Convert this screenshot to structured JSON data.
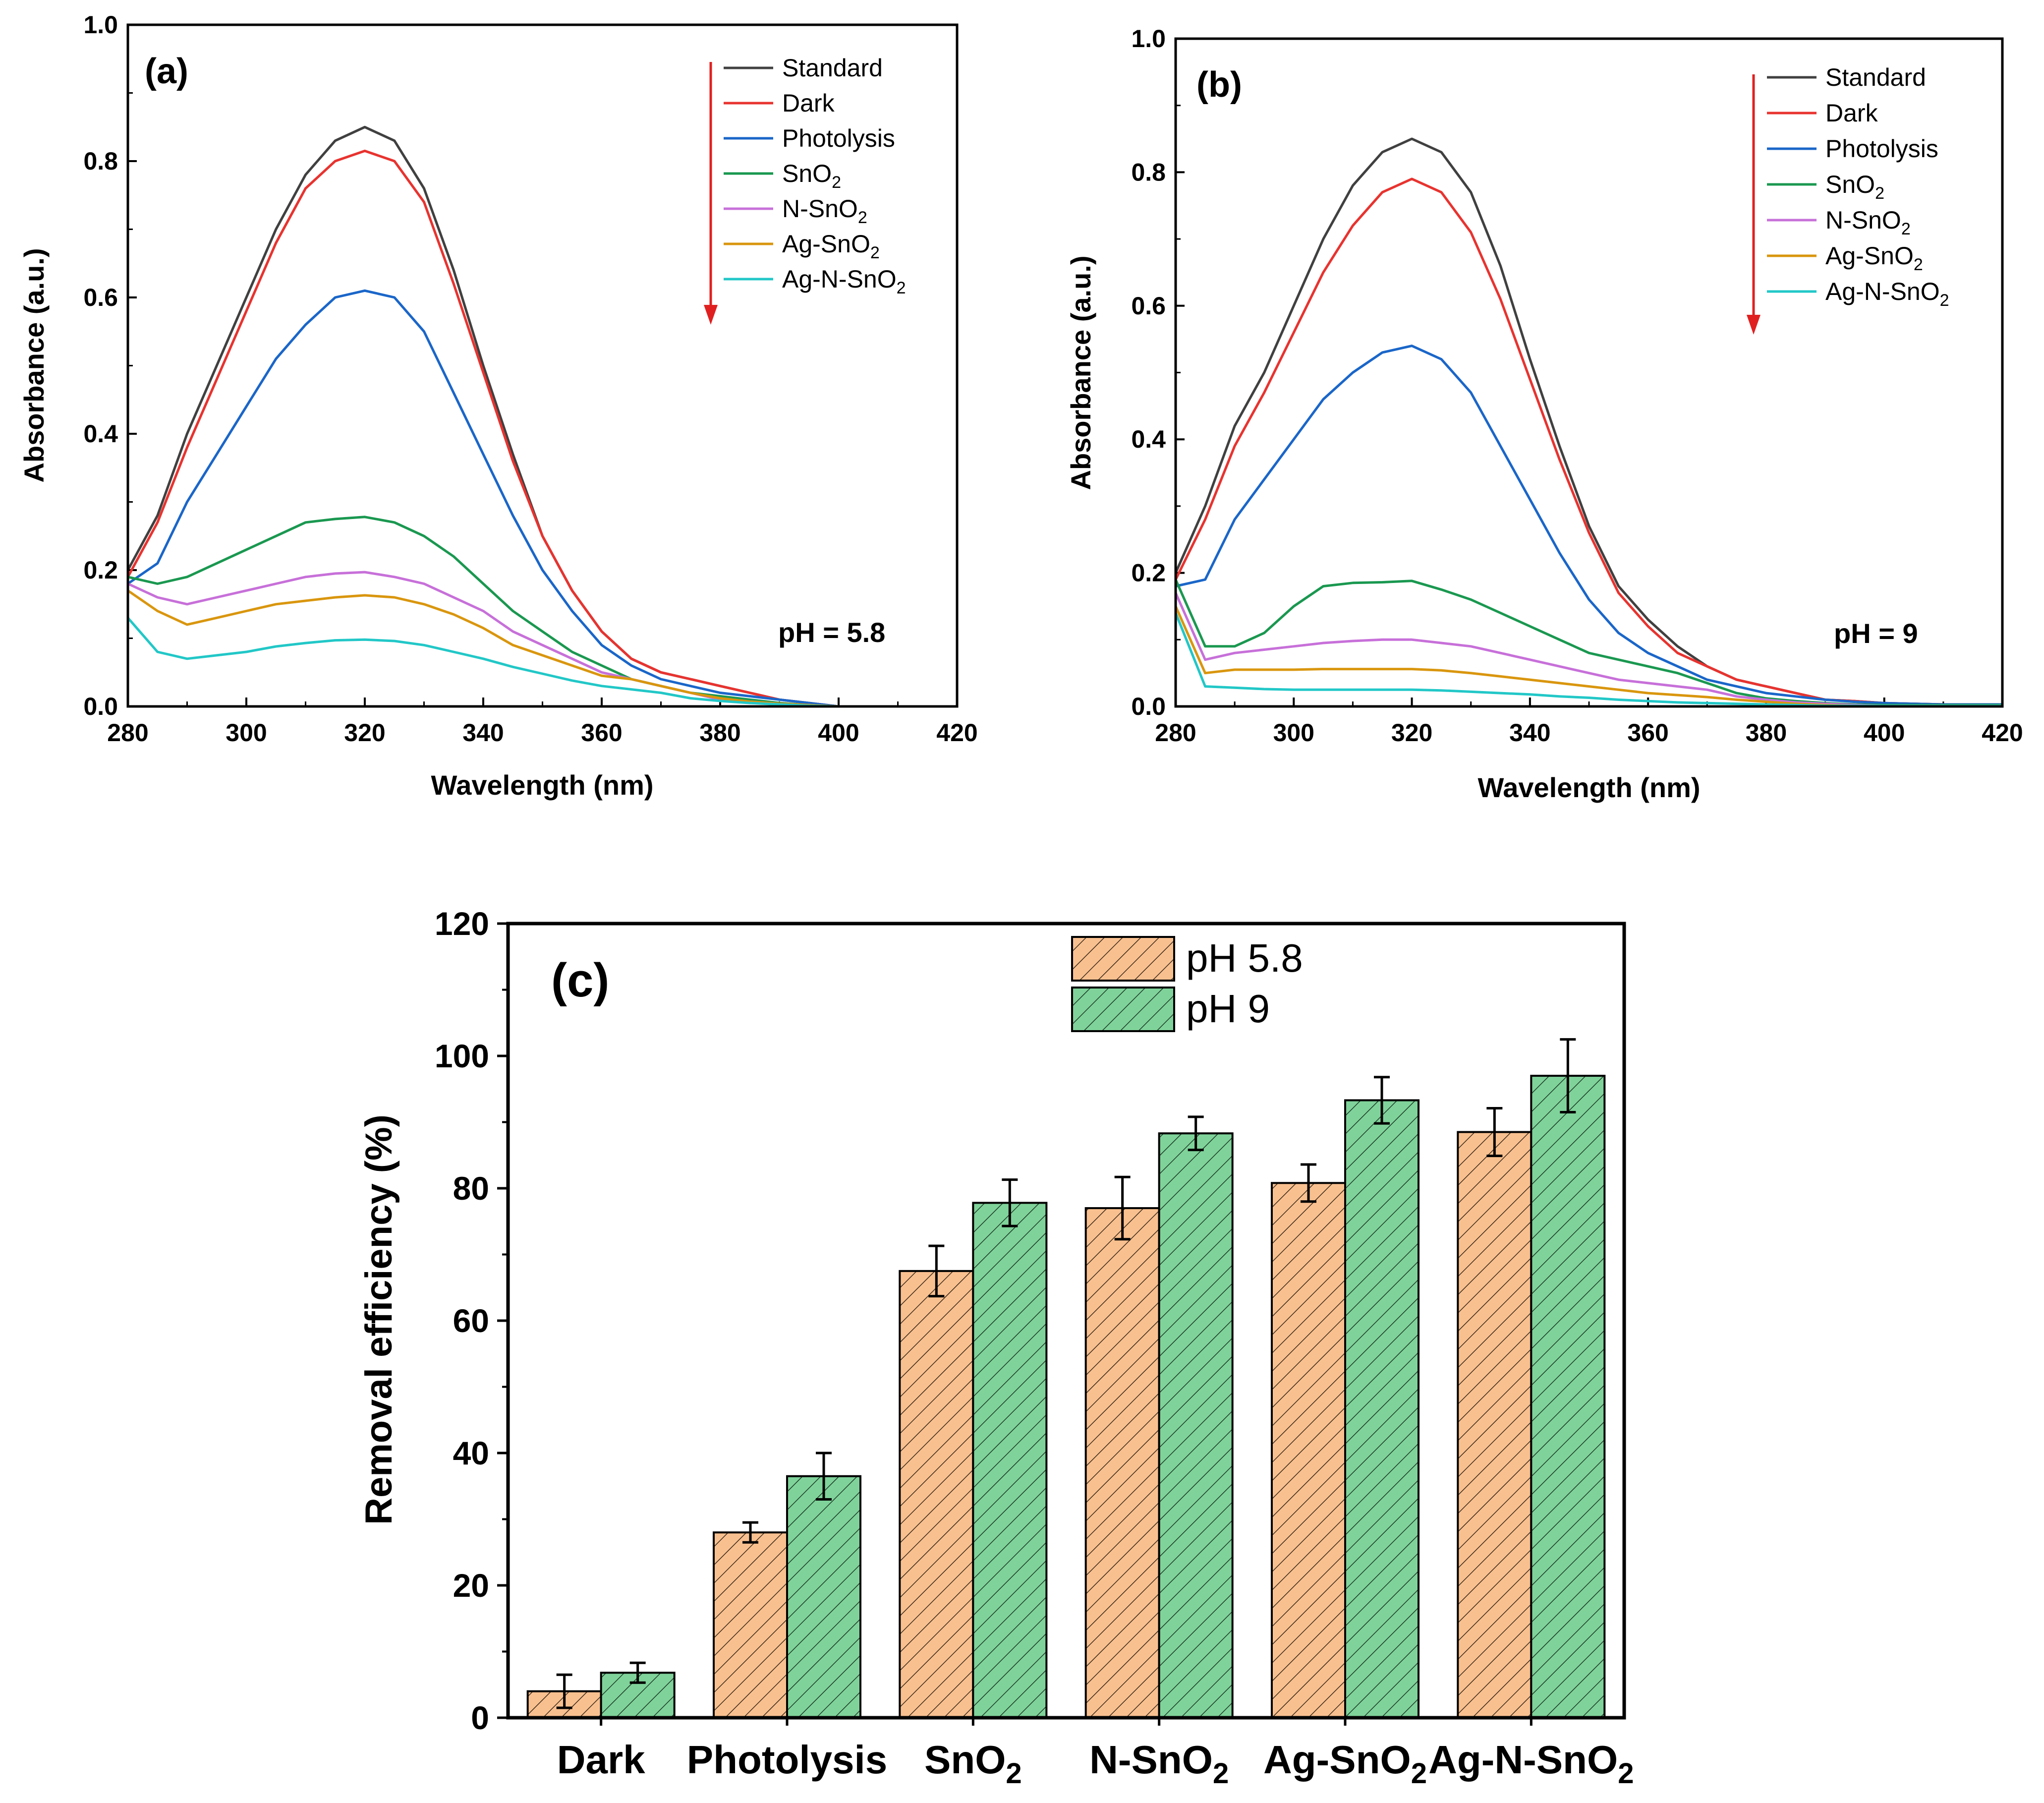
{
  "chart_data": [
    {
      "type": "line",
      "panel_label": "(a)",
      "annotation": "pH = 5.8",
      "xlabel": "Wavelength (nm)",
      "ylabel": "Absorbance (a.u.)",
      "xlim": [
        280,
        420
      ],
      "ylim": [
        0,
        1.0
      ],
      "xticks": [
        "280",
        "300",
        "320",
        "340",
        "360",
        "380",
        "400",
        "420"
      ],
      "yticks": [
        "0.0",
        "0.2",
        "0.4",
        "0.6",
        "0.8",
        "1.0"
      ],
      "legend_position": "top-right",
      "x": [
        280,
        285,
        290,
        295,
        300,
        305,
        310,
        315,
        320,
        325,
        330,
        335,
        340,
        345,
        350,
        355,
        360,
        365,
        370,
        375,
        380,
        385,
        390,
        395,
        400
      ],
      "series": [
        {
          "name": "Standard",
          "color": "#404040",
          "values": [
            0.2,
            0.28,
            0.4,
            0.5,
            0.6,
            0.7,
            0.78,
            0.83,
            0.85,
            0.83,
            0.76,
            0.64,
            0.5,
            0.37,
            0.25,
            0.17,
            0.11,
            0.07,
            0.05,
            0.04,
            0.03,
            0.02,
            0.01,
            0.005,
            0.0
          ]
        },
        {
          "name": "Dark",
          "color": "#e8332f",
          "values": [
            0.19,
            0.27,
            0.38,
            0.48,
            0.58,
            0.68,
            0.76,
            0.8,
            0.815,
            0.8,
            0.74,
            0.62,
            0.49,
            0.36,
            0.25,
            0.17,
            0.11,
            0.07,
            0.05,
            0.04,
            0.03,
            0.02,
            0.01,
            0.005,
            0.0
          ]
        },
        {
          "name": "Photolysis",
          "color": "#1a66c9",
          "values": [
            0.18,
            0.21,
            0.3,
            0.37,
            0.44,
            0.51,
            0.56,
            0.6,
            0.61,
            0.6,
            0.55,
            0.46,
            0.37,
            0.28,
            0.2,
            0.14,
            0.09,
            0.06,
            0.04,
            0.03,
            0.02,
            0.015,
            0.01,
            0.005,
            0.0
          ]
        },
        {
          "name": "SnO2",
          "color": "#1a9850",
          "values": [
            0.19,
            0.18,
            0.19,
            0.21,
            0.23,
            0.25,
            0.27,
            0.275,
            0.278,
            0.27,
            0.25,
            0.22,
            0.18,
            0.14,
            0.11,
            0.08,
            0.06,
            0.04,
            0.03,
            0.02,
            0.015,
            0.01,
            0.005,
            0.002,
            0.0
          ]
        },
        {
          "name": "N-SnO2",
          "color": "#c770d9",
          "values": [
            0.18,
            0.16,
            0.15,
            0.16,
            0.17,
            0.18,
            0.19,
            0.195,
            0.197,
            0.19,
            0.18,
            0.16,
            0.14,
            0.11,
            0.09,
            0.07,
            0.05,
            0.04,
            0.03,
            0.02,
            0.01,
            0.007,
            0.004,
            0.002,
            0.0
          ]
        },
        {
          "name": "Ag-SnO2",
          "color": "#d9960e",
          "values": [
            0.17,
            0.14,
            0.12,
            0.13,
            0.14,
            0.15,
            0.155,
            0.16,
            0.163,
            0.16,
            0.15,
            0.135,
            0.115,
            0.09,
            0.075,
            0.06,
            0.045,
            0.04,
            0.03,
            0.02,
            0.012,
            0.007,
            0.004,
            0.002,
            0.0
          ]
        },
        {
          "name": "Ag-N-SnO2",
          "color": "#22c7c7",
          "values": [
            0.13,
            0.08,
            0.07,
            0.075,
            0.08,
            0.088,
            0.093,
            0.097,
            0.098,
            0.096,
            0.09,
            0.08,
            0.07,
            0.058,
            0.048,
            0.038,
            0.03,
            0.025,
            0.02,
            0.012,
            0.008,
            0.005,
            0.003,
            0.001,
            0.0
          ]
        }
      ]
    },
    {
      "type": "line",
      "panel_label": "(b)",
      "annotation": "pH = 9",
      "xlabel": "Wavelength (nm)",
      "ylabel": "Absorbance (a.u.)",
      "xlim": [
        280,
        420
      ],
      "ylim": [
        0,
        1.0
      ],
      "xticks": [
        "280",
        "300",
        "320",
        "340",
        "360",
        "380",
        "400",
        "420"
      ],
      "yticks": [
        "0.0",
        "0.2",
        "0.4",
        "0.6",
        "0.8",
        "1.0"
      ],
      "legend_position": "top-right",
      "x": [
        280,
        285,
        290,
        295,
        300,
        305,
        310,
        315,
        320,
        325,
        330,
        335,
        340,
        345,
        350,
        355,
        360,
        365,
        370,
        375,
        380,
        385,
        390,
        395,
        400,
        410,
        420
      ],
      "series": [
        {
          "name": "Standard",
          "color": "#404040",
          "values": [
            0.2,
            0.3,
            0.42,
            0.5,
            0.6,
            0.7,
            0.78,
            0.83,
            0.85,
            0.83,
            0.77,
            0.66,
            0.52,
            0.39,
            0.27,
            0.18,
            0.13,
            0.09,
            0.06,
            0.04,
            0.03,
            0.02,
            0.01,
            0.008,
            0.005,
            0.003,
            0.003
          ]
        },
        {
          "name": "Dark",
          "color": "#e8332f",
          "values": [
            0.19,
            0.28,
            0.39,
            0.47,
            0.56,
            0.65,
            0.72,
            0.77,
            0.79,
            0.77,
            0.71,
            0.61,
            0.49,
            0.37,
            0.26,
            0.17,
            0.12,
            0.08,
            0.06,
            0.04,
            0.03,
            0.02,
            0.01,
            0.008,
            0.005,
            0.003,
            0.003
          ]
        },
        {
          "name": "Photolysis",
          "color": "#1a66c9",
          "values": [
            0.18,
            0.19,
            0.28,
            0.34,
            0.4,
            0.46,
            0.5,
            0.53,
            0.54,
            0.52,
            0.47,
            0.39,
            0.31,
            0.23,
            0.16,
            0.11,
            0.08,
            0.06,
            0.04,
            0.03,
            0.02,
            0.015,
            0.01,
            0.007,
            0.005,
            0.003,
            0.003
          ]
        },
        {
          "name": "SnO2",
          "color": "#1a9850",
          "values": [
            0.19,
            0.09,
            0.09,
            0.11,
            0.15,
            0.18,
            0.185,
            0.186,
            0.188,
            0.175,
            0.16,
            0.14,
            0.12,
            0.1,
            0.08,
            0.07,
            0.06,
            0.05,
            0.035,
            0.02,
            0.012,
            0.008,
            0.005,
            0.003,
            0.002,
            0.002,
            0.002
          ]
        },
        {
          "name": "N-SnO2",
          "color": "#c770d9",
          "values": [
            0.17,
            0.07,
            0.08,
            0.085,
            0.09,
            0.095,
            0.098,
            0.1,
            0.1,
            0.095,
            0.09,
            0.08,
            0.07,
            0.06,
            0.05,
            0.04,
            0.035,
            0.03,
            0.025,
            0.015,
            0.01,
            0.006,
            0.004,
            0.002,
            0.001,
            0.001,
            0.001
          ]
        },
        {
          "name": "Ag-SnO2",
          "color": "#d9960e",
          "values": [
            0.15,
            0.05,
            0.055,
            0.055,
            0.055,
            0.056,
            0.056,
            0.056,
            0.056,
            0.054,
            0.05,
            0.045,
            0.04,
            0.035,
            0.03,
            0.025,
            0.02,
            0.017,
            0.014,
            0.01,
            0.007,
            0.004,
            0.002,
            0.001,
            0.001,
            0.001,
            0.001
          ]
        },
        {
          "name": "Ag-N-SnO2",
          "color": "#22c7c7",
          "values": [
            0.14,
            0.03,
            0.028,
            0.026,
            0.025,
            0.025,
            0.025,
            0.025,
            0.025,
            0.024,
            0.022,
            0.02,
            0.018,
            0.015,
            0.013,
            0.01,
            0.008,
            0.006,
            0.005,
            0.004,
            0.003,
            0.002,
            0.001,
            0.001,
            0.001,
            0.001,
            0.001
          ]
        }
      ]
    },
    {
      "type": "bar",
      "panel_label": "(c)",
      "xlabel": "",
      "ylabel": "Removal efficiency (%)",
      "ylim": [
        0,
        120
      ],
      "yticks": [
        "0",
        "20",
        "40",
        "60",
        "80",
        "100",
        "120"
      ],
      "legend_position": "top-center",
      "categories": [
        "Dark",
        "Photolysis",
        "SnO2",
        "N-SnO2",
        "Ag-SnO2",
        "Ag-N-SnO2"
      ],
      "series": [
        {
          "name": "pH 5.8",
          "color": "#f9c08f",
          "values": [
            4.0,
            28.0,
            67.5,
            77.0,
            80.8,
            88.5
          ],
          "errors": [
            2.5,
            1.5,
            3.8,
            4.7,
            2.8,
            3.6
          ]
        },
        {
          "name": "pH 9",
          "color": "#7fd39a",
          "values": [
            6.8,
            36.5,
            77.8,
            88.3,
            93.3,
            97.0
          ],
          "errors": [
            1.5,
            3.5,
            3.5,
            2.5,
            3.5,
            5.5
          ]
        }
      ]
    }
  ]
}
